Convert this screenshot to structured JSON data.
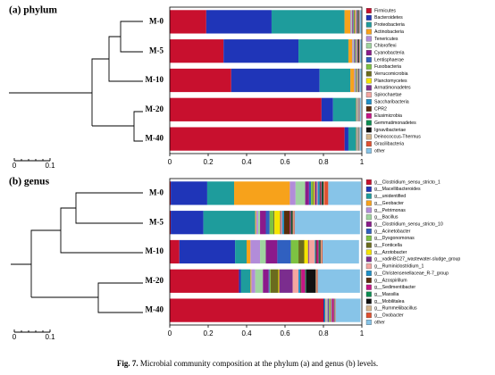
{
  "chart_data": [
    {
      "type": "stacked_barh",
      "title": "(a) phylum",
      "categories": [
        "M-0",
        "M-5",
        "M-10",
        "M-20",
        "M-40"
      ],
      "xlim": [
        0,
        1
      ],
      "xticks": [
        0,
        0.2,
        0.4,
        0.6,
        0.8,
        1
      ],
      "dendrogram_scale": [
        0,
        0.1
      ],
      "series": [
        {
          "name": "Firmicutes",
          "color": "#c8102e",
          "values": [
            0.19,
            0.28,
            0.32,
            0.79,
            0.91
          ]
        },
        {
          "name": "Bacteroidetes",
          "color": "#1f35b8",
          "values": [
            0.34,
            0.39,
            0.46,
            0.06,
            0.02
          ]
        },
        {
          "name": "Proteobacteria",
          "color": "#1e9c9c",
          "values": [
            0.38,
            0.26,
            0.16,
            0.12,
            0.04
          ]
        },
        {
          "name": "Actinobacteria",
          "color": "#f7a21b",
          "values": [
            0.03,
            0.02,
            0.02,
            0.003,
            0.003
          ]
        },
        {
          "name": "Tenericutes",
          "color": "#b28cd9",
          "values": [
            0.005,
            0.005,
            0.003,
            0.002,
            0.001
          ]
        },
        {
          "name": "Chloroflexi",
          "color": "#9fd49f",
          "values": [
            0.005,
            0.004,
            0.003,
            0.001,
            0.001
          ]
        },
        {
          "name": "Cyanobacteria",
          "color": "#8b1a8b",
          "values": [
            0.004,
            0.003,
            0.002,
            0.001,
            0.001
          ]
        },
        {
          "name": "Lentisphaerae",
          "color": "#3060c0",
          "values": [
            0.003,
            0.003,
            0.002,
            0.001,
            0.001
          ]
        },
        {
          "name": "Fusobacteria",
          "color": "#7dc242",
          "values": [
            0.003,
            0.002,
            0.002,
            0.001,
            0.001
          ]
        },
        {
          "name": "Verrucomicrobia",
          "color": "#6b6b1e",
          "values": [
            0.003,
            0.002,
            0.002,
            0.001,
            0.001
          ]
        },
        {
          "name": "Planctomycetes",
          "color": "#f5e400",
          "values": [
            0.003,
            0.002,
            0.002,
            0.001,
            0.001
          ]
        },
        {
          "name": "Armatimonadetes",
          "color": "#7b2d8e",
          "values": [
            0.003,
            0.002,
            0.002,
            0.001,
            0.001
          ]
        },
        {
          "name": "Spirochaetae",
          "color": "#f4a6a0",
          "values": [
            0.003,
            0.002,
            0.002,
            0.001,
            0.001
          ]
        },
        {
          "name": "Saccharibacteria",
          "color": "#1e90c8",
          "values": [
            0.002,
            0.002,
            0.001,
            0.001,
            0.001
          ]
        },
        {
          "name": "CPR2",
          "color": "#5a2d0c",
          "values": [
            0.002,
            0.002,
            0.001,
            0.001,
            0.001
          ]
        },
        {
          "name": "Elusimicrobia",
          "color": "#c71585",
          "values": [
            0.002,
            0.002,
            0.001,
            0.001,
            0.001
          ]
        },
        {
          "name": "Gemmatimonadetes",
          "color": "#0a8c50",
          "values": [
            0.002,
            0.002,
            0.001,
            0.001,
            0.001
          ]
        },
        {
          "name": "Ignavibacteriae",
          "color": "#111111",
          "values": [
            0.004,
            0.003,
            0.002,
            0.001,
            0.001
          ]
        },
        {
          "name": "Deinococcus-Thermus",
          "color": "#d2b48c",
          "values": [
            0.002,
            0.002,
            0.001,
            0.001,
            0.001
          ]
        },
        {
          "name": "Gracilibacteria",
          "color": "#e05030",
          "values": [
            0.002,
            0.002,
            0.001,
            0.001,
            0.001
          ]
        },
        {
          "name": "other",
          "color": "#87c4e8",
          "values": [
            0.01,
            0.01,
            0.01,
            0.005,
            0.01
          ]
        }
      ]
    },
    {
      "type": "stacked_barh",
      "title": "(b) genus",
      "categories": [
        "M-0",
        "M-5",
        "M-10",
        "M-20",
        "M-40"
      ],
      "xlim": [
        0,
        1
      ],
      "xticks": [
        0,
        0.2,
        0.4,
        0.6,
        0.8,
        1
      ],
      "dendrogram_scale": [
        0,
        0.1
      ],
      "series": [
        {
          "name": "g__Clostridium_sensu_stricto_1",
          "color": "#c8102e",
          "values": [
            0.005,
            0.005,
            0.05,
            0.36,
            0.8
          ]
        },
        {
          "name": "g__Macellibacteroides",
          "color": "#1f35b8",
          "values": [
            0.19,
            0.17,
            0.29,
            0.01,
            0.005
          ]
        },
        {
          "name": "g__unidentified",
          "color": "#1e9c9c",
          "values": [
            0.14,
            0.27,
            0.06,
            0.05,
            0.005
          ]
        },
        {
          "name": "g__Geobacter",
          "color": "#f7a21b",
          "values": [
            0.29,
            0.005,
            0.02,
            0.005,
            0.002
          ]
        },
        {
          "name": "g__Petrimonas",
          "color": "#b28cd9",
          "values": [
            0.03,
            0.01,
            0.05,
            0.02,
            0.005
          ]
        },
        {
          "name": "g__Bacillus",
          "color": "#9fd49f",
          "values": [
            0.05,
            0.01,
            0.03,
            0.04,
            0.005
          ]
        },
        {
          "name": "g__Clostridium_sensu_stricto_10",
          "color": "#8b1a8b",
          "values": [
            0.02,
            0.03,
            0.06,
            0.03,
            0.004
          ]
        },
        {
          "name": "g__Acinetobacter",
          "color": "#3060c0",
          "values": [
            0.01,
            0.02,
            0.07,
            0.005,
            0.003
          ]
        },
        {
          "name": "g__Dysgonomonas",
          "color": "#7dc242",
          "values": [
            0.01,
            0.02,
            0.04,
            0.005,
            0.003
          ]
        },
        {
          "name": "g__Fonticella",
          "color": "#6b6b1e",
          "values": [
            0.005,
            0.005,
            0.03,
            0.04,
            0.003
          ]
        },
        {
          "name": "g__Azotobacter",
          "color": "#f5e400",
          "values": [
            0.005,
            0.03,
            0.02,
            0.005,
            0.002
          ]
        },
        {
          "name": "g__vadinBC27_wastewater-sludge_group",
          "color": "#7b2d8e",
          "values": [
            0.01,
            0.005,
            0.005,
            0.07,
            0.002
          ]
        },
        {
          "name": "g__Ruminiclostridium_1",
          "color": "#f4a6a0",
          "values": [
            0.005,
            0.005,
            0.03,
            0.03,
            0.002
          ]
        },
        {
          "name": "g__Christensenellaceae_R-7_group",
          "color": "#1e90c8",
          "values": [
            0.01,
            0.01,
            0.005,
            0.01,
            0.002
          ]
        },
        {
          "name": "g__Azospirillum",
          "color": "#5a2d0c",
          "values": [
            0.005,
            0.03,
            0.005,
            0.005,
            0.002
          ]
        },
        {
          "name": "g__Sedimentibacter",
          "color": "#c71585",
          "values": [
            0.005,
            0.005,
            0.01,
            0.02,
            0.01
          ]
        },
        {
          "name": "g__Massilia",
          "color": "#0a8c50",
          "values": [
            0.005,
            0.005,
            0.005,
            0.005,
            0.002
          ]
        },
        {
          "name": "g__Mobilitalea",
          "color": "#111111",
          "values": [
            0.005,
            0.005,
            0.005,
            0.05,
            0.002
          ]
        },
        {
          "name": "g__Rummeliibacillus",
          "color": "#d2b48c",
          "values": [
            0.005,
            0.005,
            0.005,
            0.005,
            0.002
          ]
        },
        {
          "name": "g__Oxobacter",
          "color": "#e05030",
          "values": [
            0.02,
            0.005,
            0.005,
            0.005,
            0.002
          ]
        },
        {
          "name": "other",
          "color": "#87c4e8",
          "values": [
            0.17,
            0.34,
            0.19,
            0.22,
            0.13
          ]
        }
      ]
    }
  ],
  "caption": {
    "label": "Fig. 7.",
    "text": "Microbial community composition at the phylum (a) and genus (b) levels."
  }
}
